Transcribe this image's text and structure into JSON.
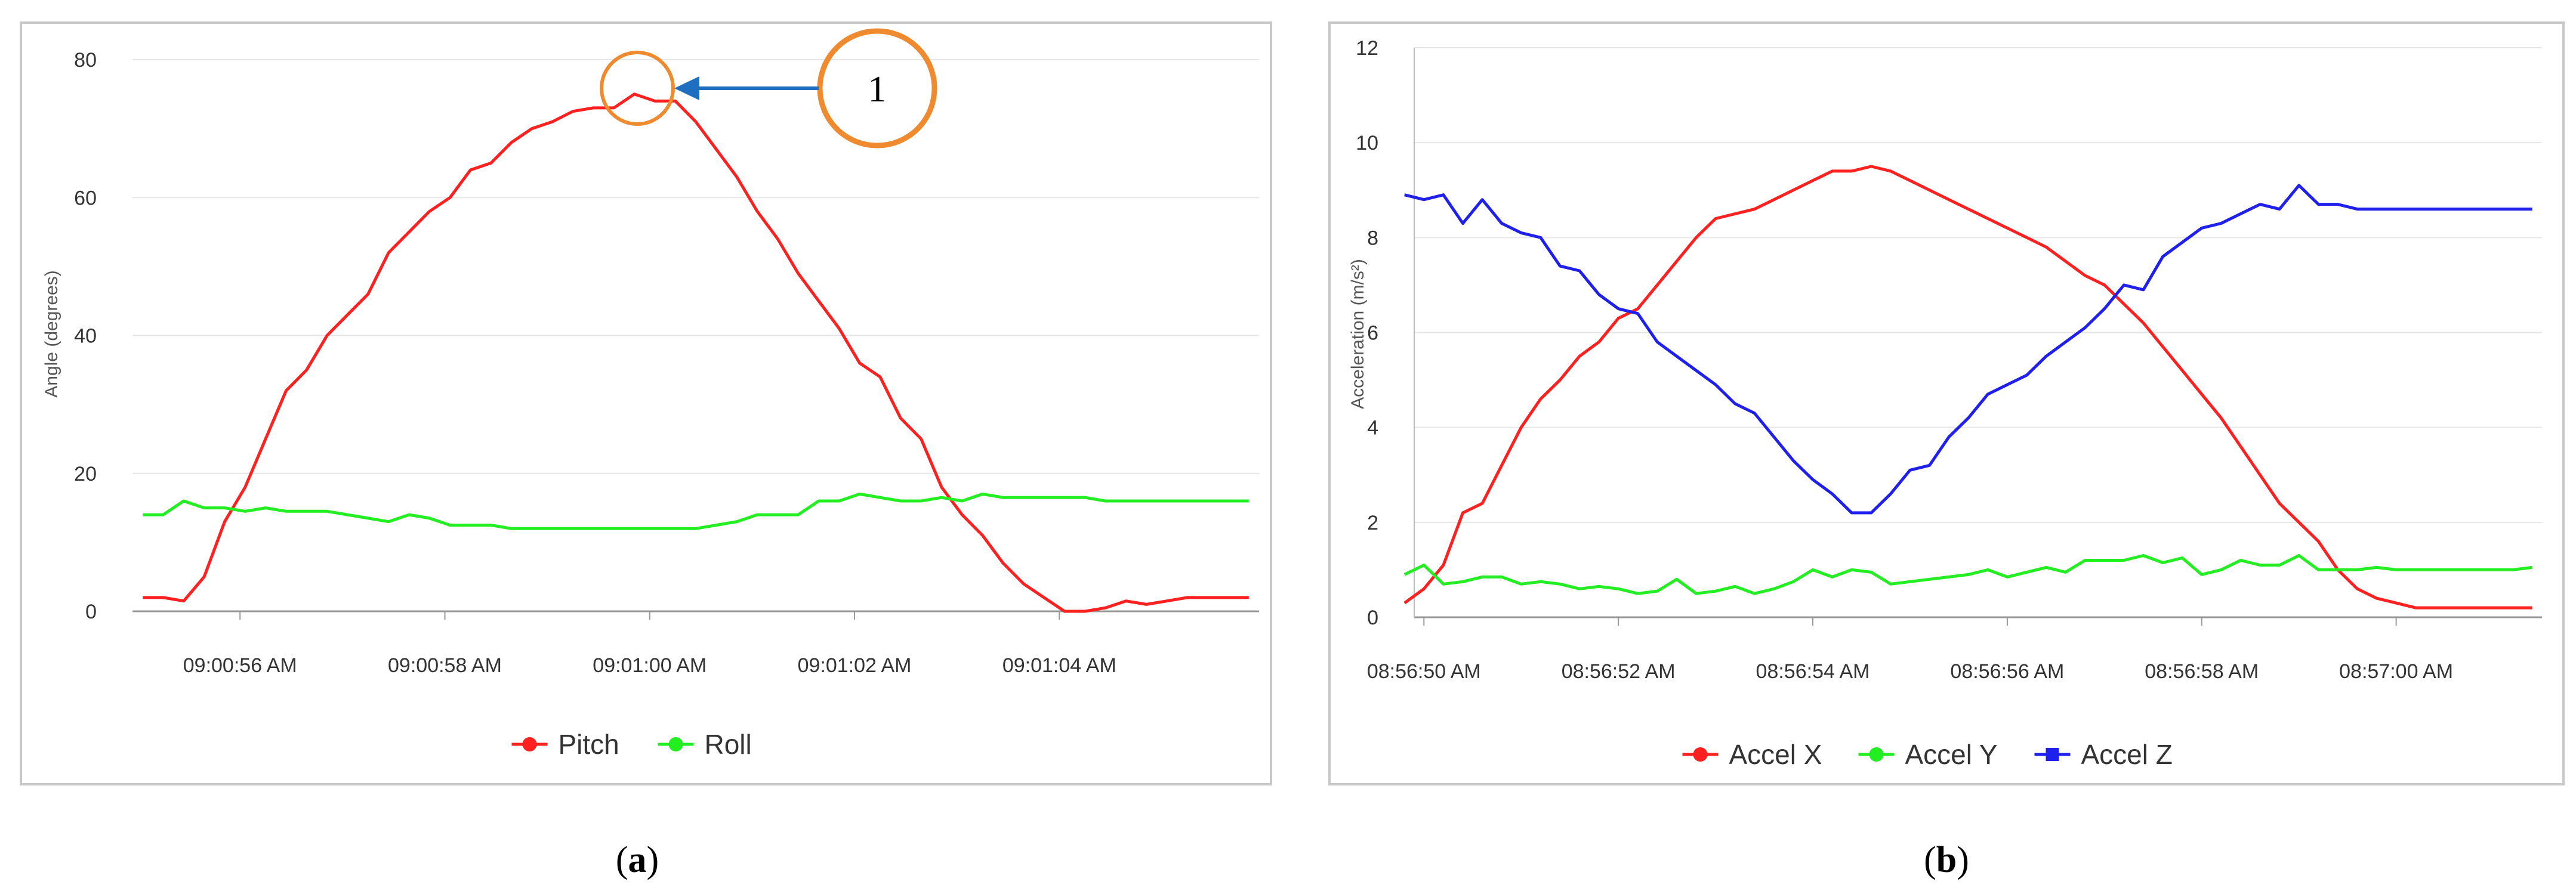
{
  "panels": [
    {
      "caption": "a",
      "annotation": {
        "label": "1",
        "color": "#f08a2e",
        "arrow_color": "#1e6fbf"
      },
      "legend": [
        {
          "name": "Pitch",
          "color": "#ff2020"
        },
        {
          "name": "Roll",
          "color": "#22ee22"
        }
      ]
    },
    {
      "caption": "b",
      "legend": [
        {
          "name": "Accel X",
          "color": "#ff2020"
        },
        {
          "name": "Accel Y",
          "color": "#22ee22"
        },
        {
          "name": "Accel Z",
          "color": "#2020ee"
        }
      ]
    }
  ],
  "chart_data": [
    {
      "type": "line",
      "title": "",
      "xlabel": "",
      "ylabel": "Angle (degrees)",
      "ylim": [
        0,
        80
      ],
      "yticks": [
        0,
        20,
        40,
        60,
        80
      ],
      "xlim": [
        54.9,
        65.9
      ],
      "x_ticks": [
        {
          "x": 55.95,
          "label": "09:00:56 AM"
        },
        {
          "x": 57.95,
          "label": "09:00:58 AM"
        },
        {
          "x": 59.95,
          "label": "09:01:00 AM"
        },
        {
          "x": 61.95,
          "label": "09:01:02 AM"
        },
        {
          "x": 63.95,
          "label": "09:01:04 AM"
        }
      ],
      "grid": "horizontal",
      "legend_position": "bottom",
      "series": [
        {
          "name": "Pitch",
          "color": "#ff2020",
          "x": [
            55.0,
            55.2,
            55.4,
            55.6,
            55.8,
            56.0,
            56.2,
            56.4,
            56.6,
            56.8,
            57.0,
            57.2,
            57.4,
            57.6,
            57.8,
            58.0,
            58.2,
            58.4,
            58.6,
            58.8,
            59.0,
            59.2,
            59.4,
            59.6,
            59.8,
            60.0,
            60.2,
            60.4,
            60.6,
            60.8,
            61.0,
            61.2,
            61.4,
            61.6,
            61.8,
            62.0,
            62.2,
            62.4,
            62.6,
            62.8,
            63.0,
            63.2,
            63.4,
            63.6,
            63.8,
            64.0,
            64.2,
            64.4,
            64.6,
            64.8,
            65.0,
            65.2,
            65.4,
            65.6,
            65.8
          ],
          "y": [
            2,
            2,
            1.5,
            5,
            13,
            18,
            25,
            32,
            35,
            40,
            43,
            46,
            52,
            55,
            58,
            60,
            64,
            65,
            68,
            70,
            71,
            72.5,
            73,
            73,
            75,
            74,
            74,
            71,
            67,
            63,
            58,
            54,
            49,
            45,
            41,
            36,
            34,
            28,
            25,
            18,
            14,
            11,
            7,
            4,
            2,
            0,
            0,
            0.5,
            1.5,
            1,
            1.5,
            2,
            2,
            2,
            2
          ]
        },
        {
          "name": "Roll",
          "color": "#22ee22",
          "x": [
            55.0,
            55.2,
            55.4,
            55.6,
            55.8,
            56.0,
            56.2,
            56.4,
            56.6,
            56.8,
            57.0,
            57.2,
            57.4,
            57.6,
            57.8,
            58.0,
            58.2,
            58.4,
            58.6,
            58.8,
            59.0,
            59.2,
            59.4,
            59.6,
            59.8,
            60.0,
            60.2,
            60.4,
            60.6,
            60.8,
            61.0,
            61.2,
            61.4,
            61.6,
            61.8,
            62.0,
            62.2,
            62.4,
            62.6,
            62.8,
            63.0,
            63.2,
            63.4,
            63.6,
            63.8,
            64.0,
            64.2,
            64.4,
            64.6,
            64.8,
            65.0,
            65.2,
            65.4,
            65.6,
            65.8
          ],
          "y": [
            14,
            14,
            16,
            15,
            15,
            14.5,
            15,
            14.5,
            14.5,
            14.5,
            14,
            13.5,
            13,
            14,
            13.5,
            12.5,
            12.5,
            12.5,
            12,
            12,
            12,
            12,
            12,
            12,
            12,
            12,
            12,
            12,
            12.5,
            13,
            14,
            14,
            14,
            16,
            16,
            17,
            16.5,
            16,
            16,
            16.5,
            16,
            17,
            16.5,
            16.5,
            16.5,
            16.5,
            16.5,
            16,
            16,
            16,
            16,
            16,
            16,
            16,
            16
          ]
        }
      ]
    },
    {
      "type": "line",
      "title": "",
      "xlabel": "",
      "ylabel": "Acceleration (m/s²)",
      "ylim": [
        0,
        12
      ],
      "yticks": [
        0,
        2,
        4,
        6,
        8,
        10,
        12
      ],
      "xlim": [
        49.9,
        61.5
      ],
      "x_ticks": [
        {
          "x": 50.0,
          "label": "08:56:50 AM"
        },
        {
          "x": 52.0,
          "label": "08:56:52 AM"
        },
        {
          "x": 54.0,
          "label": "08:56:54 AM"
        },
        {
          "x": 56.0,
          "label": "08:56:56 AM"
        },
        {
          "x": 58.0,
          "label": "08:56:58 AM"
        },
        {
          "x": 60.0,
          "label": "08:57:00 AM"
        }
      ],
      "grid": "horizontal",
      "legend_position": "bottom",
      "series": [
        {
          "name": "Accel X",
          "color": "#ff2020",
          "x": [
            49.8,
            50.0,
            50.2,
            50.4,
            50.6,
            50.8,
            51.0,
            51.2,
            51.4,
            51.6,
            51.8,
            52.0,
            52.2,
            52.4,
            52.6,
            52.8,
            53.0,
            53.2,
            53.4,
            53.6,
            53.8,
            54.0,
            54.2,
            54.4,
            54.6,
            54.8,
            55.0,
            55.2,
            55.4,
            55.6,
            55.8,
            56.0,
            56.2,
            56.4,
            56.6,
            56.8,
            57.0,
            57.2,
            57.4,
            57.6,
            57.8,
            58.0,
            58.2,
            58.4,
            58.6,
            58.8,
            59.0,
            59.2,
            59.4,
            59.6,
            59.8,
            60.0,
            60.2,
            60.4,
            60.6,
            60.8,
            61.0,
            61.2,
            61.4
          ],
          "y": [
            0.3,
            0.6,
            1.1,
            2.2,
            2.4,
            3.2,
            4.0,
            4.6,
            5.0,
            5.5,
            5.8,
            6.3,
            6.5,
            7.0,
            7.5,
            8.0,
            8.4,
            8.5,
            8.6,
            8.8,
            9.0,
            9.2,
            9.4,
            9.4,
            9.5,
            9.4,
            9.2,
            9.0,
            8.8,
            8.6,
            8.4,
            8.2,
            8.0,
            7.8,
            7.5,
            7.2,
            7.0,
            6.6,
            6.2,
            5.7,
            5.2,
            4.7,
            4.2,
            3.6,
            3.0,
            2.4,
            2.0,
            1.6,
            1.0,
            0.6,
            0.4,
            0.3,
            0.2,
            0.2,
            0.2,
            0.2,
            0.2,
            0.2,
            0.2
          ]
        },
        {
          "name": "Accel Y",
          "color": "#22ee22",
          "x": [
            49.8,
            50.0,
            50.2,
            50.4,
            50.6,
            50.8,
            51.0,
            51.2,
            51.4,
            51.6,
            51.8,
            52.0,
            52.2,
            52.4,
            52.6,
            52.8,
            53.0,
            53.2,
            53.4,
            53.6,
            53.8,
            54.0,
            54.2,
            54.4,
            54.6,
            54.8,
            55.0,
            55.2,
            55.4,
            55.6,
            55.8,
            56.0,
            56.2,
            56.4,
            56.6,
            56.8,
            57.0,
            57.2,
            57.4,
            57.6,
            57.8,
            58.0,
            58.2,
            58.4,
            58.6,
            58.8,
            59.0,
            59.2,
            59.4,
            59.6,
            59.8,
            60.0,
            60.2,
            60.4,
            60.6,
            60.8,
            61.0,
            61.2,
            61.4
          ],
          "y": [
            0.9,
            1.1,
            0.7,
            0.75,
            0.85,
            0.85,
            0.7,
            0.75,
            0.7,
            0.6,
            0.65,
            0.6,
            0.5,
            0.55,
            0.8,
            0.5,
            0.55,
            0.65,
            0.5,
            0.6,
            0.75,
            1.0,
            0.85,
            1.0,
            0.95,
            0.7,
            0.75,
            0.8,
            0.85,
            0.9,
            1.0,
            0.85,
            0.95,
            1.05,
            0.95,
            1.2,
            1.2,
            1.2,
            1.3,
            1.15,
            1.25,
            0.9,
            1.0,
            1.2,
            1.1,
            1.1,
            1.3,
            1.0,
            1.0,
            1.0,
            1.05,
            1.0,
            1.0,
            1.0,
            1.0,
            1.0,
            1.0,
            1.0,
            1.05
          ]
        },
        {
          "name": "Accel Z",
          "color": "#2020ee",
          "x": [
            49.8,
            50.0,
            50.2,
            50.4,
            50.6,
            50.8,
            51.0,
            51.2,
            51.4,
            51.6,
            51.8,
            52.0,
            52.2,
            52.4,
            52.6,
            52.8,
            53.0,
            53.2,
            53.4,
            53.6,
            53.8,
            54.0,
            54.2,
            54.4,
            54.6,
            54.8,
            55.0,
            55.2,
            55.4,
            55.6,
            55.8,
            56.0,
            56.2,
            56.4,
            56.6,
            56.8,
            57.0,
            57.2,
            57.4,
            57.6,
            57.8,
            58.0,
            58.2,
            58.4,
            58.6,
            58.8,
            59.0,
            59.2,
            59.4,
            59.6,
            59.8,
            60.0,
            60.2,
            60.4,
            60.6,
            60.8,
            61.0,
            61.2,
            61.4
          ],
          "y": [
            8.9,
            8.8,
            8.9,
            8.3,
            8.8,
            8.3,
            8.1,
            8.0,
            7.4,
            7.3,
            6.8,
            6.5,
            6.4,
            5.8,
            5.5,
            5.2,
            4.9,
            4.5,
            4.3,
            3.8,
            3.3,
            2.9,
            2.6,
            2.2,
            2.2,
            2.6,
            3.1,
            3.2,
            3.8,
            4.2,
            4.7,
            4.9,
            5.1,
            5.5,
            5.8,
            6.1,
            6.5,
            7.0,
            6.9,
            7.6,
            7.9,
            8.2,
            8.3,
            8.5,
            8.7,
            8.6,
            9.1,
            8.7,
            8.7,
            8.6,
            8.6,
            8.6,
            8.6,
            8.6,
            8.6,
            8.6,
            8.6,
            8.6,
            8.6
          ]
        }
      ]
    }
  ]
}
